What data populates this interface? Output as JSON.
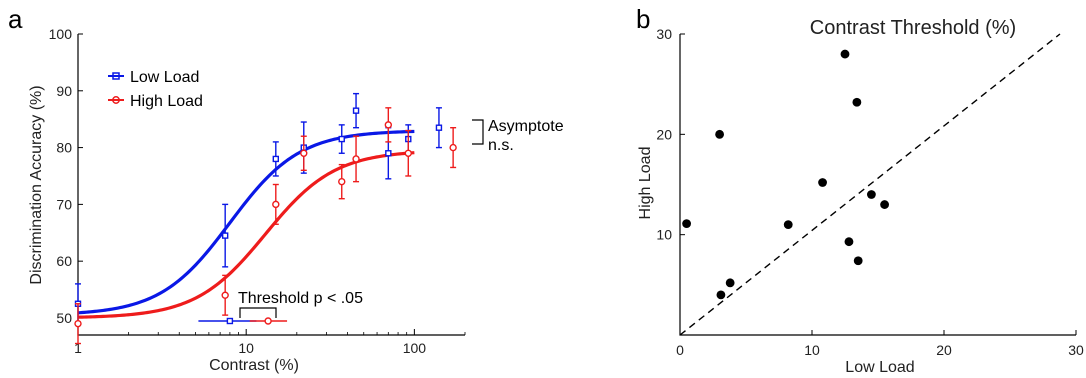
{
  "panels": {
    "left": "a",
    "right": "b"
  },
  "colors": {
    "low": "#0a18e6",
    "high": "#ee1c1c"
  },
  "chart_data": [
    {
      "type": "line",
      "xscale": "log",
      "xlabel": "Contrast (%)",
      "ylabel": "Discrimination Accuracy (%)",
      "xlim": [
        1,
        200
      ],
      "ylim": [
        47,
        100
      ],
      "xticks": [
        1,
        10,
        100
      ],
      "xtick_labels": [
        "1",
        "10",
        "100"
      ],
      "yticks": [
        50,
        60,
        70,
        80,
        90,
        100
      ],
      "ytick_labels": [
        "50",
        "60",
        "70",
        "80",
        "90",
        "100"
      ],
      "legend": "top-left",
      "series": [
        {
          "name": "Low Load",
          "color": "#0a18e6",
          "marker": "square",
          "x": [
            1,
            7.5,
            15,
            22,
            37,
            45,
            70,
            92,
            140
          ],
          "y": [
            52.5,
            64.5,
            78,
            80,
            81.5,
            86.5,
            79,
            81.5,
            83.5
          ],
          "err": [
            3.5,
            5.5,
            3,
            4.5,
            2.5,
            3,
            4.5,
            2.5,
            3.5
          ],
          "fit": {
            "base": 50.5,
            "asymptote": 83,
            "threshold": 8,
            "slope": 2.1
          }
        },
        {
          "name": "High Load",
          "color": "#ee1c1c",
          "marker": "circle",
          "x": [
            1,
            7.5,
            15,
            22,
            37,
            45,
            70,
            92,
            170
          ],
          "y": [
            49,
            54,
            70,
            79,
            74,
            78,
            84,
            79,
            80
          ],
          "err": [
            3.5,
            3.5,
            3.5,
            3,
            3,
            4,
            3,
            4,
            3.5
          ],
          "fit": {
            "base": 50,
            "asymptote": 79.5,
            "threshold": 13,
            "slope": 2.1
          }
        }
      ],
      "threshold_estimates": [
        {
          "series": "Low Load",
          "x": 8,
          "ci": [
            5.2,
            11.5
          ]
        },
        {
          "series": "High Load",
          "x": 13.5,
          "ci": [
            10.5,
            17.5
          ]
        }
      ],
      "annotations": {
        "threshold": "Threshold p < .05",
        "asymptote": "Asymptote",
        "asymptote_sig": "n.s."
      }
    },
    {
      "type": "scatter",
      "title": "Contrast Threshold (%)",
      "xlabel": "Low Load",
      "ylabel": "High Load",
      "xlim": [
        0,
        30
      ],
      "ylim": [
        0,
        30
      ],
      "xticks": [
        0,
        10,
        20,
        30
      ],
      "yticks": [
        10,
        20,
        30
      ],
      "xtick_labels": [
        "0",
        "10",
        "20",
        "30"
      ],
      "ytick_labels": [
        "10",
        "20",
        "30"
      ],
      "reference_line": "identity (dashed)",
      "points": {
        "x": [
          0.5,
          3,
          3.1,
          3.8,
          8.2,
          10.8,
          12.5,
          12.8,
          13.4,
          13.5,
          14.5,
          15.5
        ],
        "y": [
          11.1,
          20,
          4,
          5.2,
          11,
          15.2,
          28,
          9.3,
          23.2,
          7.4,
          14,
          13
        ]
      }
    }
  ]
}
